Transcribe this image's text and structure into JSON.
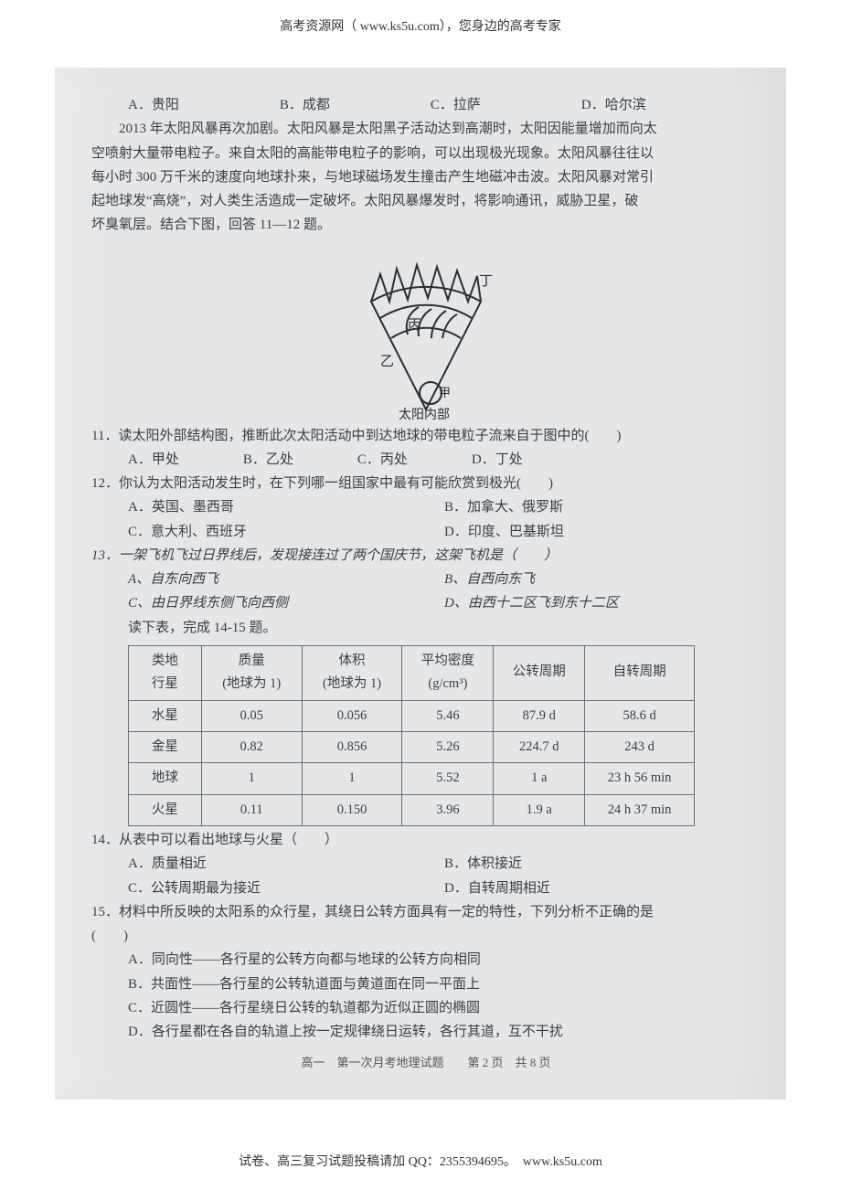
{
  "header": {
    "text": "高考资源网（ www.ks5u.com），您身边的高考专家"
  },
  "q10": {
    "a": "A．贵阳",
    "b": "B．成都",
    "c": "C．拉萨",
    "d": "D．哈尔滨"
  },
  "passage": {
    "l1": "2013 年太阳风暴再次加剧。太阳风暴是太阳黑子活动达到高潮时，太阳因能量增加而向太",
    "l2": "空喷射大量带电粒子。来自太阳的高能带电粒子的影响，可以出现极光现象。太阳风暴往往以",
    "l3": "每小时 300 万千米的速度向地球扑来，与地球磁场发生撞击产生地磁冲击波。太阳风暴对常引",
    "l4": "起地球发“高烧”，对人类生活造成一定破坏。太阳风暴爆发时，将影响通讯，威胁卫星，破",
    "l5": "坏臭氧层。结合下图，回答 11—12 题。"
  },
  "figure": {
    "label_ding": "丁",
    "label_bing": "丙",
    "label_yi": "乙",
    "label_jia": "甲",
    "caption": "太阳内部"
  },
  "q11": {
    "stem": "11．读太阳外部结构图，推断此次太阳活动中到达地球的带电粒子流来自于图中的(　　)",
    "a": "A．甲处",
    "b": "B．乙处",
    "c": "C．丙处",
    "d": "D．丁处"
  },
  "q12": {
    "stem": "12．你认为太阳活动发生时，在下列哪一组国家中最有可能欣赏到极光(　　)",
    "a": "A．英国、墨西哥",
    "b": "B．加拿大、俄罗斯",
    "c": "C．意大利、西班牙",
    "d": "D．印度、巴基斯坦"
  },
  "q13": {
    "stem": "13．一架飞机飞过日界线后，发现接连过了两个国庆节，这架飞机是（　　）",
    "a": "A、自东向西飞",
    "b": "B、自西向东飞",
    "c": "C、由日界线东侧飞向西侧",
    "d": "D、由西十二区飞到东十二区",
    "tail": "读下表，完成 14-15 题。"
  },
  "table": {
    "columns": [
      "类地\n行星",
      "质量\n(地球为 1)",
      "体积\n(地球为 1)",
      "平均密度\n(g/cm³)",
      "公转周期",
      "自转周期"
    ],
    "rows": [
      [
        "水星",
        "0.05",
        "0.056",
        "5.46",
        "87.9 d",
        "58.6 d"
      ],
      [
        "金星",
        "0.82",
        "0.856",
        "5.26",
        "224.7 d",
        "243 d"
      ],
      [
        "地球",
        "1",
        "1",
        "5.52",
        "1 a",
        "23 h 56 min"
      ],
      [
        "火星",
        "0.11",
        "0.150",
        "3.96",
        "1.9 a",
        "24 h 37 min"
      ]
    ],
    "col_widths": [
      "80px",
      "110px",
      "110px",
      "100px",
      "100px",
      "120px"
    ],
    "border_color": "#6b6f73",
    "bg_color": "#e4e6e8",
    "font_size": 14.5
  },
  "q14": {
    "stem": "14．从表中可以看出地球与火星（　　）",
    "a": "A．质量相近",
    "b": "B．体积接近",
    "c": "C．公转周期最为接近",
    "d": "D．自转周期相近"
  },
  "q15": {
    "stem": "15．材料中所反映的太阳系的众行星，其绕日公转方面具有一定的特性，下列分析不正确的是",
    "paren": "(　　)",
    "a": "A．同向性——各行星的公转方向都与地球的公转方向相同",
    "b": "B．共面性——各行星的公转轨道面与黄道面在同一平面上",
    "c": "C．近圆性——各行星绕日公转的轨道都为近似正圆的椭圆",
    "d": "D．各行星都在各自的轨道上按一定规律绕日运转，各行其道，互不干扰"
  },
  "page_marker": "高一　第一次月考地理试题　　第 2 页　共 8 页",
  "footer": {
    "text": "试卷、高三复习试题投稿请加 QQ：2355394695。　www.ks5u.com"
  },
  "colors": {
    "scan_bg": "#e4e6e8",
    "text": "#3a3f44",
    "page_bg": "#ffffff"
  }
}
